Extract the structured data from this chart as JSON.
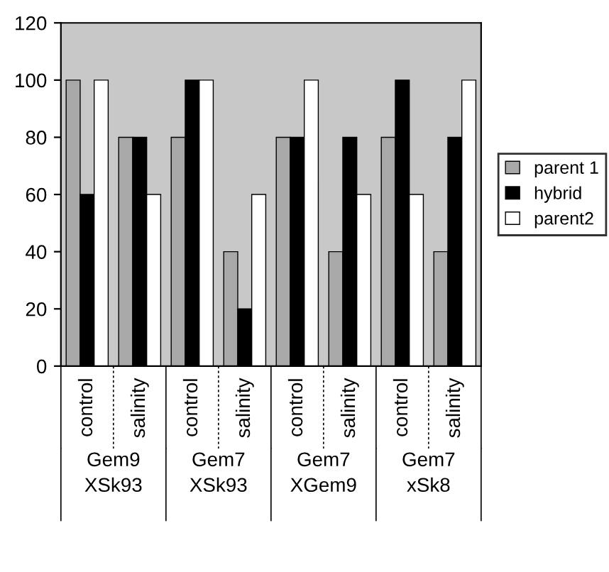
{
  "chart_data": {
    "type": "bar",
    "categories": [
      "control",
      "salinity",
      "control",
      "salinity",
      "control",
      "salinity",
      "control",
      "salinity"
    ],
    "series": [
      {
        "name": "parent 1",
        "color": "#a8a8a8",
        "values": [
          100,
          80,
          80,
          40,
          80,
          40,
          80,
          40
        ]
      },
      {
        "name": "hybrid",
        "color": "#000000",
        "values": [
          60,
          80,
          100,
          20,
          80,
          80,
          100,
          80
        ]
      },
      {
        "name": "parent2",
        "color": "#ffffff",
        "values": [
          100,
          60,
          100,
          60,
          100,
          60,
          60,
          100
        ]
      }
    ],
    "annotations": [
      "Gem9\nXSk93",
      "Gem7\nXSk93",
      "Gem7\nXGem9",
      "Gem7\nxSk8"
    ],
    "ylim": [
      0,
      120
    ],
    "yticks": [
      0,
      20,
      40,
      60,
      80,
      100,
      120
    ],
    "grid": false,
    "legend": "right"
  }
}
